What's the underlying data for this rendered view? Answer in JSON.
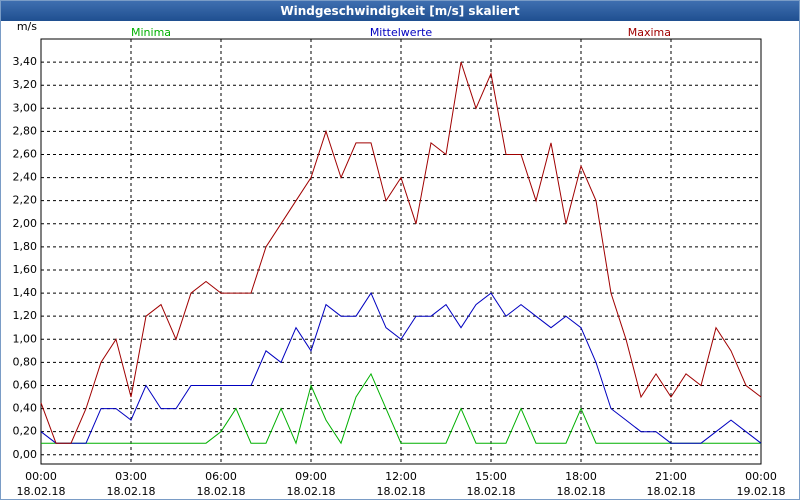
{
  "chart_data": {
    "type": "line",
    "title": "Windgeschwindigkeit [m/s] skaliert",
    "y_label": "m/s",
    "x": [
      0,
      0.5,
      1,
      1.5,
      2,
      2.5,
      3,
      3.5,
      4,
      4.5,
      5,
      5.5,
      6,
      6.5,
      7,
      7.5,
      8,
      8.5,
      9,
      9.5,
      10,
      10.5,
      11,
      11.5,
      12,
      12.5,
      13,
      13.5,
      14,
      14.5,
      15,
      15.5,
      16,
      16.5,
      17,
      17.5,
      18,
      18.5,
      19,
      19.5,
      20,
      20.5,
      21,
      21.5,
      22,
      22.5,
      23,
      23.5,
      24
    ],
    "series": [
      {
        "name": "Minima",
        "color": "#00b000",
        "values": [
          0.1,
          0.1,
          0.1,
          0.1,
          0.1,
          0.1,
          0.1,
          0.1,
          0.1,
          0.1,
          0.1,
          0.1,
          0.2,
          0.4,
          0.1,
          0.1,
          0.4,
          0.1,
          0.6,
          0.3,
          0.1,
          0.5,
          0.7,
          0.4,
          0.1,
          0.1,
          0.1,
          0.1,
          0.4,
          0.1,
          0.1,
          0.1,
          0.4,
          0.1,
          0.1,
          0.1,
          0.4,
          0.1,
          0.1,
          0.1,
          0.1,
          0.1,
          0.1,
          0.1,
          0.1,
          0.1,
          0.1,
          0.1,
          0.1
        ]
      },
      {
        "name": "Mittelwerte",
        "color": "#0000c0",
        "values": [
          0.2,
          0.1,
          0.1,
          0.1,
          0.4,
          0.4,
          0.3,
          0.6,
          0.4,
          0.4,
          0.6,
          0.6,
          0.6,
          0.6,
          0.6,
          0.9,
          0.8,
          1.1,
          0.9,
          1.3,
          1.2,
          1.2,
          1.4,
          1.1,
          1.0,
          1.2,
          1.2,
          1.3,
          1.1,
          1.3,
          1.4,
          1.2,
          1.3,
          1.2,
          1.1,
          1.2,
          1.1,
          0.8,
          0.4,
          0.3,
          0.2,
          0.2,
          0.1,
          0.1,
          0.1,
          0.2,
          0.3,
          0.2,
          0.1
        ]
      },
      {
        "name": "Maxima",
        "color": "#a00000",
        "values": [
          0.45,
          0.1,
          0.1,
          0.4,
          0.8,
          1.0,
          0.5,
          1.2,
          1.3,
          1.0,
          1.4,
          1.5,
          1.4,
          1.4,
          1.4,
          1.8,
          2.0,
          2.2,
          2.4,
          2.8,
          2.4,
          2.7,
          2.7,
          2.2,
          2.4,
          2.0,
          2.7,
          2.6,
          3.4,
          3.0,
          3.3,
          2.6,
          2.6,
          2.2,
          2.7,
          2.0,
          2.5,
          2.2,
          1.4,
          1.0,
          0.5,
          0.7,
          0.5,
          0.7,
          0.6,
          1.1,
          0.9,
          0.6,
          0.5
        ]
      }
    ],
    "xlim": [
      0,
      24
    ],
    "ylim": [
      -0.08,
      3.6
    ],
    "xticks": [
      {
        "value": 0,
        "label": [
          "00:00",
          "18.02.18"
        ]
      },
      {
        "value": 3,
        "label": [
          "03:00",
          "18.02.18"
        ]
      },
      {
        "value": 6,
        "label": [
          "06:00",
          "18.02.18"
        ]
      },
      {
        "value": 9,
        "label": [
          "09:00",
          "18.02.18"
        ]
      },
      {
        "value": 12,
        "label": [
          "12:00",
          "18.02.18"
        ]
      },
      {
        "value": 15,
        "label": [
          "15:00",
          "18.02.18"
        ]
      },
      {
        "value": 18,
        "label": [
          "18:00",
          "18.02.18"
        ]
      },
      {
        "value": 21,
        "label": [
          "21:00",
          "18.02.18"
        ]
      },
      {
        "value": 24,
        "label": [
          "00:00",
          "19.02.18"
        ]
      }
    ],
    "yticks": [
      {
        "value": 0,
        "label": "0,00"
      },
      {
        "value": 0.2,
        "label": "0,20"
      },
      {
        "value": 0.4,
        "label": "0,40"
      },
      {
        "value": 0.6,
        "label": "0,60"
      },
      {
        "value": 0.8,
        "label": "0,80"
      },
      {
        "value": 1.0,
        "label": "1,00"
      },
      {
        "value": 1.2,
        "label": "1,20"
      },
      {
        "value": 1.4,
        "label": "1,40"
      },
      {
        "value": 1.6,
        "label": "1,60"
      },
      {
        "value": 1.8,
        "label": "1,80"
      },
      {
        "value": 2.0,
        "label": "2,00"
      },
      {
        "value": 2.2,
        "label": "2,20"
      },
      {
        "value": 2.4,
        "label": "2,40"
      },
      {
        "value": 2.6,
        "label": "2,60"
      },
      {
        "value": 2.8,
        "label": "2,80"
      },
      {
        "value": 3.0,
        "label": "3,00"
      },
      {
        "value": 3.2,
        "label": "3,20"
      },
      {
        "value": 3.4,
        "label": "3,40"
      }
    ],
    "grid": true
  }
}
